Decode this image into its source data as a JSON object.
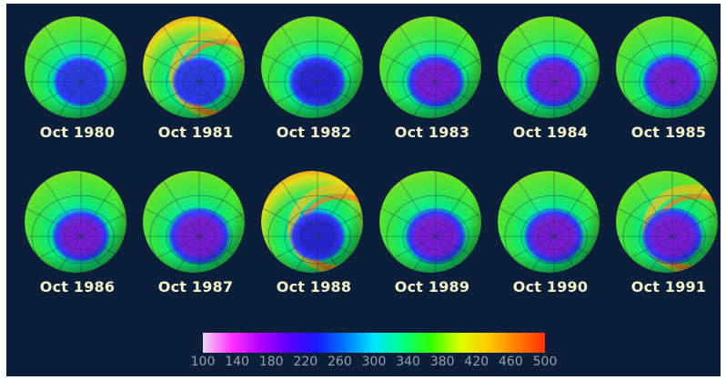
{
  "globes": [
    {
      "label": "Oct 1980",
      "hole": "blue-light",
      "strength": 0.35,
      "rim": 0.4
    },
    {
      "label": "Oct 1981",
      "hole": "blue-light",
      "strength": 0.35,
      "rim": 0.85
    },
    {
      "label": "Oct 1982",
      "hole": "blue",
      "strength": 0.5,
      "rim": 0.5
    },
    {
      "label": "Oct 1983",
      "hole": "purple",
      "strength": 0.6,
      "rim": 0.35
    },
    {
      "label": "Oct 1984",
      "hole": "purple",
      "strength": 0.6,
      "rim": 0.4
    },
    {
      "label": "Oct 1985",
      "hole": "purple",
      "strength": 0.7,
      "rim": 0.3
    },
    {
      "label": "Oct 1986",
      "hole": "purple",
      "strength": 0.55,
      "rim": 0.3
    },
    {
      "label": "Oct 1987",
      "hole": "purple",
      "strength": 0.9,
      "rim": 0.35
    },
    {
      "label": "Oct 1988",
      "hole": "blue",
      "strength": 0.45,
      "rim": 0.85
    },
    {
      "label": "Oct 1989",
      "hole": "purple",
      "strength": 0.8,
      "rim": 0.35
    },
    {
      "label": "Oct 1990",
      "hole": "purple",
      "strength": 0.75,
      "rim": 0.35
    },
    {
      "label": "Oct 1991",
      "hole": "purple",
      "strength": 0.85,
      "rim": 0.6
    }
  ],
  "colorbar": {
    "ticks": [
      "100",
      "140",
      "180",
      "220",
      "260",
      "300",
      "340",
      "380",
      "420",
      "460",
      "500"
    ],
    "colors": [
      "#f2d6f0",
      "#ff33ff",
      "#b400ff",
      "#5a00ff",
      "#1a1aff",
      "#0077ff",
      "#00e5ff",
      "#00ff88",
      "#33ff00",
      "#d8ff00",
      "#ffcc00",
      "#ff7f00",
      "#ff3300"
    ]
  }
}
